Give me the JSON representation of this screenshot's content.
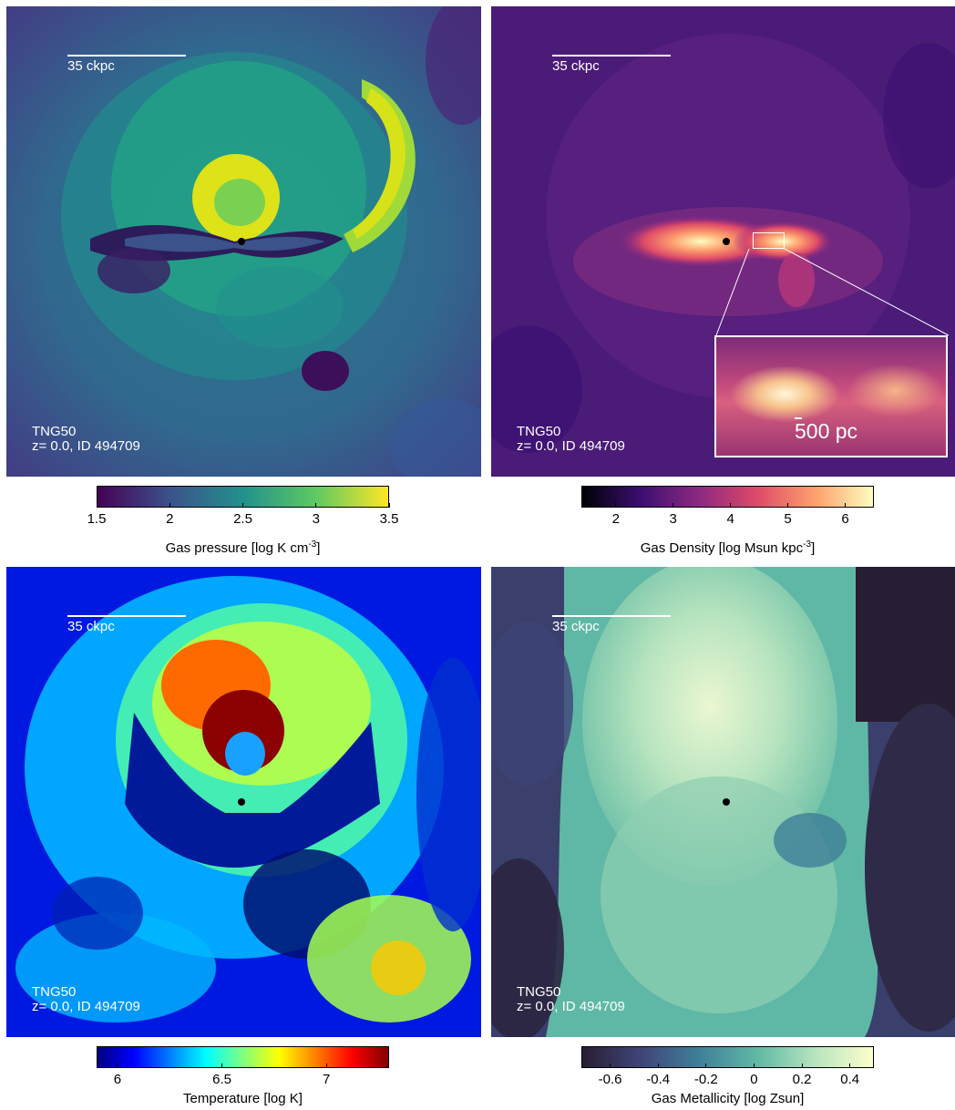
{
  "panels": [
    {
      "id": "pressure",
      "scale_label": "35 ckpc",
      "sim_name": "TNG50",
      "sub_info": "z= 0.0, ID 494709",
      "colorbar": {
        "label_prefix": "Gas pressure [log K cm",
        "label_sup": "-3",
        "label_suffix": "]",
        "ticks": [
          "1.5",
          "2",
          "2.5",
          "3",
          "3.5"
        ],
        "tick_values": [
          1.5,
          2,
          2.5,
          3,
          3.5
        ],
        "range": [
          1.5,
          3.5
        ],
        "colormap": "viridis",
        "colors": [
          "#440154",
          "#3b528b",
          "#21918c",
          "#5ec962",
          "#fde725"
        ]
      }
    },
    {
      "id": "density",
      "scale_label": "35 ckpc",
      "sim_name": "TNG50",
      "sub_info": "z= 0.0, ID 494709",
      "inset_label": "500 pc",
      "colorbar": {
        "label_prefix": "Gas Density [log Msun kpc",
        "label_sup": "-3",
        "label_suffix": "]",
        "ticks": [
          "2",
          "3",
          "4",
          "5",
          "6"
        ],
        "tick_values": [
          2,
          3,
          4,
          5,
          6
        ],
        "range": [
          1.4,
          6.5
        ],
        "colormap": "magma",
        "colors": [
          "#000004",
          "#3b0f70",
          "#8c2981",
          "#de4968",
          "#fe9f6d",
          "#fcfdbf"
        ]
      }
    },
    {
      "id": "temperature",
      "scale_label": "35 ckpc",
      "sim_name": "TNG50",
      "sub_info": "z= 0.0, ID 494709",
      "colorbar": {
        "label_prefix": "Temperature [log K]",
        "label_sup": "",
        "label_suffix": "",
        "ticks": [
          "6",
          "6.5",
          "7"
        ],
        "tick_values": [
          6,
          6.5,
          7
        ],
        "range": [
          5.9,
          7.3
        ],
        "colormap": "jet",
        "colors": [
          "#00007f",
          "#0000ff",
          "#007fff",
          "#00ffff",
          "#7fff7f",
          "#ffff00",
          "#ff7f00",
          "#ff0000",
          "#7f0000"
        ]
      }
    },
    {
      "id": "metallicity",
      "scale_label": "35 ckpc",
      "sim_name": "TNG50",
      "sub_info": "z= 0.0, ID 494709",
      "colorbar": {
        "label_prefix": "Gas Metallicity [log Zsun]",
        "label_sup": "",
        "label_suffix": "",
        "ticks": [
          "-0.6",
          "-0.4",
          "-0.2",
          "0",
          "0.2",
          "0.4"
        ],
        "tick_values": [
          -0.6,
          -0.4,
          -0.2,
          0,
          0.2,
          0.4
        ],
        "range": [
          -0.72,
          0.5
        ],
        "colormap": "deep",
        "colors": [
          "#281e33",
          "#3f4478",
          "#3f7f99",
          "#5fb8a5",
          "#b7e4bf",
          "#fdfecc"
        ]
      }
    }
  ]
}
